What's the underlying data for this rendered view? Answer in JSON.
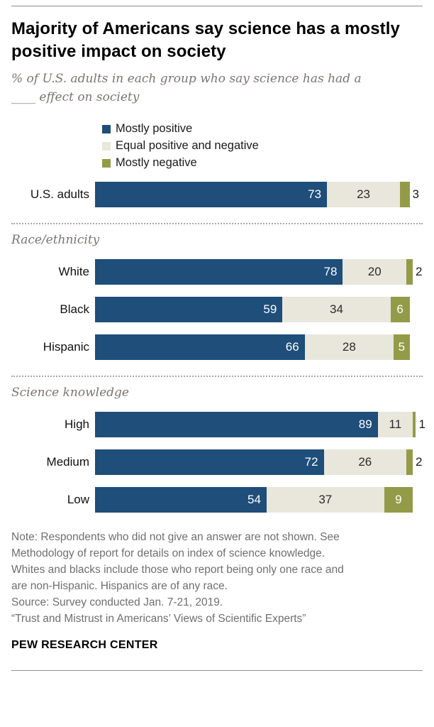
{
  "header": {
    "title": "Majority of Americans say science has a mostly positive impact on society",
    "subtitle_lines": [
      "% of U.S. adults in each group who say science has had a",
      "____ effect on society"
    ]
  },
  "legend": [
    {
      "label": "Mostly positive",
      "color": "#1e4e79"
    },
    {
      "label": "Equal positive and negative",
      "color": "#e9e6dc"
    },
    {
      "label": "Mostly negative",
      "color": "#949b48"
    }
  ],
  "chart_data": {
    "type": "bar",
    "orientation": "horizontal",
    "stacked": true,
    "title": "Majority of Americans say science has a mostly positive impact on society",
    "subtitle": "% of U.S. adults in each group who say science has had a ____ effect on society",
    "series_names": [
      "Mostly positive",
      "Equal positive and negative",
      "Mostly negative"
    ],
    "xlim": [
      0,
      100
    ],
    "legend_position": "top",
    "groups": [
      {
        "header": "",
        "rows": [
          {
            "label": "U.S. adults",
            "values": [
              73,
              23,
              3
            ]
          }
        ]
      },
      {
        "header": "Race/ethnicity",
        "rows": [
          {
            "label": "White",
            "values": [
              78,
              20,
              2
            ]
          },
          {
            "label": "Black",
            "values": [
              59,
              34,
              6
            ]
          },
          {
            "label": "Hispanic",
            "values": [
              66,
              28,
              5
            ]
          }
        ]
      },
      {
        "header": "Science knowledge",
        "rows": [
          {
            "label": "High",
            "values": [
              89,
              11,
              1
            ]
          },
          {
            "label": "Medium",
            "values": [
              72,
              26,
              2
            ]
          },
          {
            "label": "Low",
            "values": [
              54,
              37,
              9
            ]
          }
        ]
      }
    ]
  },
  "footer": {
    "note_lines": [
      "Note: Respondents who did not give an answer are not shown. See",
      "Methodology of report for details on index of science knowledge.",
      "Whites and blacks include those who report being only one race and",
      "are non-Hispanic. Hispanics are of any race.",
      "Source: Survey conducted Jan. 7-21, 2019.",
      "“Trust and Mistrust in Americans’ Views of Scientific Experts”"
    ],
    "brand": "PEW RESEARCH CENTER"
  }
}
